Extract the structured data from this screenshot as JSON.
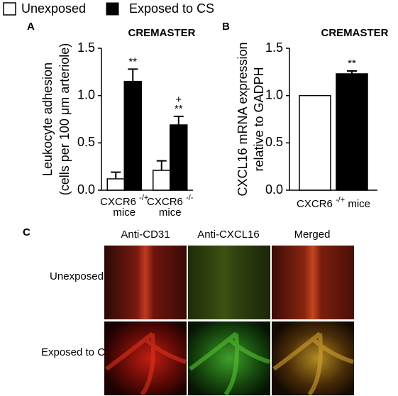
{
  "legend": {
    "position": "top"
  },
  "chart_data": [
    {
      "type": "bar",
      "label": "A",
      "title": "CREMASTER",
      "ylabel": [
        "Leukocyte adhesion",
        "(cells per 100 μm arteriole)"
      ],
      "categories": [
        "CXCR6 -/+ mice",
        "CXCR6 -/- mice"
      ],
      "series": [
        {
          "name": "Unexposed",
          "color": "#ffffff",
          "values": [
            0.12,
            0.21
          ],
          "errors": [
            0.07,
            0.1
          ]
        },
        {
          "name": "Exposed to CS",
          "color": "#000000",
          "values": [
            1.15,
            0.69
          ],
          "errors": [
            0.13,
            0.09
          ],
          "significance": [
            [
              "**"
            ],
            [
              "+",
              "**"
            ]
          ]
        }
      ],
      "ylim": [
        0,
        1.5
      ],
      "yticks": [
        {
          "value": 0,
          "label": "0.0"
        },
        {
          "value": 0.5,
          "label": "0.5"
        },
        {
          "value": 1,
          "label": "1.0"
        },
        {
          "value": 1.5,
          "label": "1.5"
        }
      ]
    },
    {
      "type": "bar",
      "label": "B",
      "title": "CREMASTER",
      "ylabel": [
        "CXCL16 mRNA expression",
        "relative to GADPH"
      ],
      "categories": [
        "CXCR6 -/+ mice"
      ],
      "series": [
        {
          "name": "Unexposed",
          "color": "#ffffff",
          "values": [
            1.0
          ],
          "errors": [
            0
          ]
        },
        {
          "name": "Exposed to CS",
          "color": "#000000",
          "values": [
            1.23
          ],
          "errors": [
            0.03
          ],
          "significance": [
            [
              "**"
            ]
          ]
        }
      ],
      "ylim": [
        0,
        1.5
      ],
      "yticks": [
        {
          "value": 0,
          "label": "0.0"
        },
        {
          "value": 0.5,
          "label": "0.5"
        },
        {
          "value": 1,
          "label": "1.0"
        },
        {
          "value": 1.5,
          "label": "1.5"
        }
      ]
    }
  ],
  "image_panel": {
    "label": "C",
    "columns": [
      "Anti-CD31",
      "Anti-CXCL16",
      "Merged"
    ],
    "rows": [
      "Unexposed",
      "Exposed to CS"
    ]
  }
}
